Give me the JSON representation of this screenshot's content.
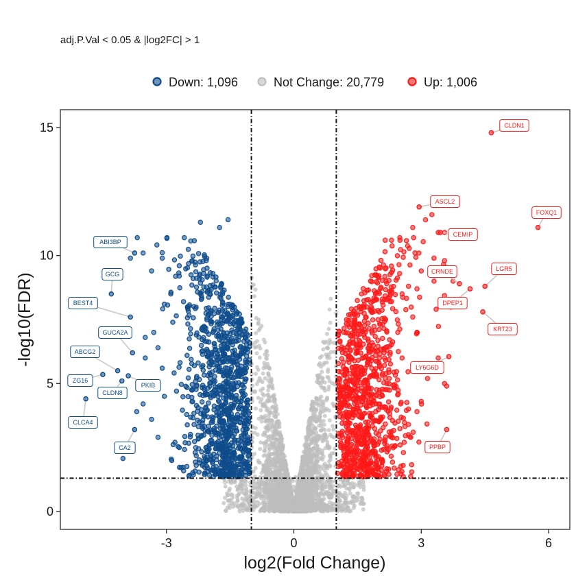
{
  "chart_data": {
    "type": "scatter",
    "subtitle": "adj.P.Val < 0.05 & |log2FC| > 1",
    "xlabel": "log2(Fold Change)",
    "ylabel": "-log10(FDR)",
    "xlim": [
      -5.5,
      6.5
    ],
    "ylim": [
      -0.7,
      15.7
    ],
    "x_ticks": [
      -3,
      0,
      3,
      6
    ],
    "x_tick_labels": [
      "-3",
      "0",
      "3",
      "6"
    ],
    "y_ticks": [
      0,
      5,
      10,
      15
    ],
    "y_tick_labels": [
      "0",
      "5",
      "10",
      "15"
    ],
    "thresholds": {
      "x": [
        -1,
        1
      ],
      "y": 1.3
    },
    "grid": false,
    "legend_position": "top",
    "colors": {
      "down": "#0f4c8c",
      "not_change": "#bebebe",
      "up": "#ff1a1a"
    },
    "legend": [
      {
        "key": "down",
        "label": "Down: 1,096"
      },
      {
        "key": "not_change",
        "label": "Not Change: 20,779"
      },
      {
        "key": "up",
        "label": "Up: 1,006"
      }
    ],
    "labeled_genes": [
      {
        "gene": "CLDN1",
        "x": 4.65,
        "y": 14.8,
        "group": "up"
      },
      {
        "gene": "ASCL2",
        "x": 2.95,
        "y": 11.9,
        "group": "up"
      },
      {
        "gene": "FOXQ1",
        "x": 5.75,
        "y": 11.1,
        "group": "up"
      },
      {
        "gene": "CEMIP",
        "x": 3.45,
        "y": 10.9,
        "group": "up"
      },
      {
        "gene": "LGR5",
        "x": 4.5,
        "y": 8.8,
        "group": "up"
      },
      {
        "gene": "CRNDE",
        "x": 3.9,
        "y": 8.9,
        "group": "up"
      },
      {
        "gene": "DPEP1",
        "x": 4.15,
        "y": 8.7,
        "group": "up"
      },
      {
        "gene": "KRT23",
        "x": 4.45,
        "y": 7.8,
        "group": "up"
      },
      {
        "gene": "LY6G6D",
        "x": 3.65,
        "y": 6.05,
        "group": "up"
      },
      {
        "gene": "PPBP",
        "x": 3.6,
        "y": 3.2,
        "group": "up"
      },
      {
        "gene": "ABI3BP",
        "x": -3.75,
        "y": 10.1,
        "group": "down"
      },
      {
        "gene": "GCG",
        "x": -4.3,
        "y": 8.5,
        "group": "down"
      },
      {
        "gene": "BEST4",
        "x": -3.85,
        "y": 7.6,
        "group": "down"
      },
      {
        "gene": "GUCA2A",
        "x": -3.8,
        "y": 6.2,
        "group": "down"
      },
      {
        "gene": "ABCG2",
        "x": -4.15,
        "y": 5.5,
        "group": "down"
      },
      {
        "gene": "ZG16",
        "x": -4.5,
        "y": 5.35,
        "group": "down"
      },
      {
        "gene": "PKIB",
        "x": -3.9,
        "y": 5.3,
        "group": "down"
      },
      {
        "gene": "CLDN8",
        "x": -4.05,
        "y": 5.1,
        "group": "down"
      },
      {
        "gene": "CLCA4",
        "x": -4.9,
        "y": 4.4,
        "group": "down"
      },
      {
        "gene": "CA2",
        "x": -3.75,
        "y": 3.2,
        "group": "down"
      }
    ],
    "notable_points": {
      "up": [
        [
          3.25,
          11.6
        ],
        [
          3.1,
          11.4
        ],
        [
          2.8,
          11.1
        ],
        [
          3.55,
          10.9
        ],
        [
          3.4,
          10.9
        ],
        [
          2.5,
          10.6
        ],
        [
          2.3,
          10.6
        ],
        [
          2.15,
          10.6
        ],
        [
          3.3,
          9.9
        ],
        [
          3.55,
          9.8
        ],
        [
          3.75,
          9.0
        ],
        [
          3.3,
          9.0
        ],
        [
          3.0,
          9.4
        ],
        [
          2.9,
          8.7
        ],
        [
          2.7,
          8.8
        ],
        [
          2.55,
          8.5
        ],
        [
          3.35,
          7.9
        ],
        [
          2.8,
          7.6
        ],
        [
          2.9,
          7.0
        ],
        [
          3.4,
          6.0
        ],
        [
          2.55,
          6.0
        ],
        [
          3.55,
          5.0
        ],
        [
          3.6,
          4.9
        ],
        [
          3.0,
          4.3
        ],
        [
          2.7,
          4.0
        ],
        [
          2.9,
          3.9
        ],
        [
          2.7,
          3.4
        ],
        [
          2.7,
          3.0
        ],
        [
          2.6,
          2.7
        ],
        [
          2.3,
          2.9
        ]
      ],
      "down": [
        [
          -2.2,
          11.3
        ],
        [
          -1.55,
          11.4
        ],
        [
          -1.75,
          11.1
        ],
        [
          -3.85,
          9.9
        ],
        [
          -3.55,
          10.1
        ],
        [
          -3.1,
          9.9
        ],
        [
          -3.35,
          9.4
        ],
        [
          -2.7,
          9.6
        ],
        [
          -2.7,
          9.2
        ],
        [
          -2.6,
          8.2
        ],
        [
          -2.9,
          8.5
        ],
        [
          -3.05,
          8.1
        ],
        [
          -3.3,
          7.0
        ],
        [
          -3.5,
          6.8
        ],
        [
          -3.2,
          6.4
        ],
        [
          -3.5,
          6.0
        ],
        [
          -3.1,
          5.6
        ],
        [
          -3.3,
          5.0
        ],
        [
          -3.6,
          5.0
        ],
        [
          -3.05,
          4.5
        ],
        [
          -3.55,
          4.2
        ],
        [
          -3.7,
          3.9
        ],
        [
          -3.35,
          3.6
        ],
        [
          -3.2,
          2.9
        ],
        [
          -2.8,
          2.7
        ],
        [
          -2.7,
          2.5
        ],
        [
          -2.3,
          1.8
        ],
        [
          -2.1,
          1.5
        ]
      ]
    }
  }
}
